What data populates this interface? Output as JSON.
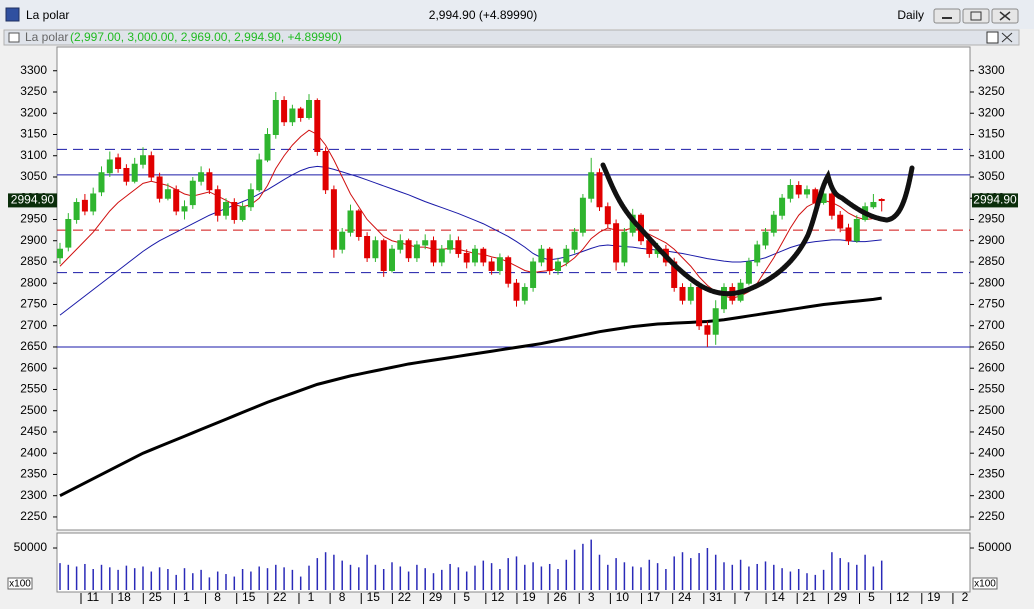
{
  "window": {
    "title": "La polar",
    "quote": "2,994.90 (+4.89990)",
    "period": "Daily"
  },
  "chart_data": {
    "type": "candlestick",
    "symbol": "La polar",
    "ohlc_text": "(2,997.00, 3,000.00, 2,969.00, 2,994.90, +4.89990)",
    "last_label": "2994.90",
    "ylim": [
      2224,
      3330
    ],
    "yticks": [
      2250,
      2300,
      2350,
      2400,
      2450,
      2500,
      2550,
      2600,
      2650,
      2700,
      2750,
      2800,
      2850,
      2900,
      2950,
      3000,
      3050,
      3100,
      3150,
      3200,
      3250,
      3300
    ],
    "up_color": "#2fb52f",
    "down_color": "#e00000",
    "x_labels": [
      "11",
      "18",
      "25",
      "1",
      "8",
      "15",
      "22",
      "1",
      "8",
      "15",
      "22",
      "29",
      "5",
      "12",
      "19",
      "26",
      "3",
      "10",
      "17",
      "24",
      "31",
      "7",
      "14",
      "21",
      "29",
      "5",
      "12",
      "19",
      "2"
    ],
    "candles": [
      [
        2860,
        2895,
        2845,
        2880
      ],
      [
        2885,
        2965,
        2875,
        2950
      ],
      [
        2950,
        3000,
        2940,
        2990
      ],
      [
        2995,
        3010,
        2960,
        2970
      ],
      [
        2970,
        3025,
        2960,
        3010
      ],
      [
        3015,
        3075,
        3005,
        3060
      ],
      [
        3060,
        3110,
        3050,
        3090
      ],
      [
        3095,
        3105,
        3060,
        3070
      ],
      [
        3070,
        3080,
        3030,
        3040
      ],
      [
        3040,
        3095,
        3035,
        3080
      ],
      [
        3080,
        3120,
        3070,
        3100
      ],
      [
        3100,
        3110,
        3040,
        3050
      ],
      [
        3050,
        3060,
        2990,
        3000
      ],
      [
        3000,
        3035,
        2995,
        3020
      ],
      [
        3020,
        3030,
        2960,
        2970
      ],
      [
        2970,
        2995,
        2950,
        2980
      ],
      [
        2985,
        3050,
        2975,
        3040
      ],
      [
        3040,
        3075,
        3030,
        3060
      ],
      [
        3060,
        3070,
        3010,
        3020
      ],
      [
        3020,
        3030,
        2945,
        2960
      ],
      [
        2960,
        3000,
        2950,
        2990
      ],
      [
        2990,
        3000,
        2940,
        2950
      ],
      [
        2950,
        2990,
        2945,
        2980
      ],
      [
        2980,
        3035,
        2970,
        3020
      ],
      [
        3020,
        3105,
        3015,
        3090
      ],
      [
        3090,
        3165,
        3085,
        3150
      ],
      [
        3150,
        3250,
        3140,
        3230
      ],
      [
        3230,
        3240,
        3170,
        3180
      ],
      [
        3180,
        3220,
        3170,
        3210
      ],
      [
        3210,
        3215,
        3180,
        3190
      ],
      [
        3190,
        3245,
        3185,
        3230
      ],
      [
        3230,
        3235,
        3100,
        3110
      ],
      [
        3110,
        3120,
        3010,
        3020
      ],
      [
        3020,
        3030,
        2860,
        2880
      ],
      [
        2880,
        2930,
        2870,
        2920
      ],
      [
        2920,
        2985,
        2910,
        2970
      ],
      [
        2970,
        2975,
        2900,
        2910
      ],
      [
        2910,
        2920,
        2850,
        2860
      ],
      [
        2860,
        2910,
        2850,
        2900
      ],
      [
        2900,
        2905,
        2815,
        2830
      ],
      [
        2830,
        2890,
        2825,
        2880
      ],
      [
        2880,
        2915,
        2870,
        2900
      ],
      [
        2900,
        2905,
        2850,
        2860
      ],
      [
        2860,
        2900,
        2850,
        2890
      ],
      [
        2890,
        2915,
        2880,
        2900
      ],
      [
        2900,
        2910,
        2840,
        2850
      ],
      [
        2850,
        2890,
        2840,
        2880
      ],
      [
        2880,
        2915,
        2870,
        2900
      ],
      [
        2900,
        2910,
        2860,
        2870
      ],
      [
        2870,
        2880,
        2835,
        2850
      ],
      [
        2850,
        2890,
        2840,
        2880
      ],
      [
        2880,
        2885,
        2840,
        2850
      ],
      [
        2850,
        2860,
        2820,
        2830
      ],
      [
        2830,
        2870,
        2820,
        2860
      ],
      [
        2860,
        2865,
        2790,
        2800
      ],
      [
        2800,
        2810,
        2745,
        2760
      ],
      [
        2760,
        2800,
        2750,
        2790
      ],
      [
        2790,
        2860,
        2780,
        2850
      ],
      [
        2850,
        2890,
        2840,
        2880
      ],
      [
        2880,
        2885,
        2820,
        2830
      ],
      [
        2830,
        2860,
        2820,
        2850
      ],
      [
        2850,
        2890,
        2840,
        2880
      ],
      [
        2880,
        2930,
        2870,
        2920
      ],
      [
        2920,
        3010,
        2910,
        3000
      ],
      [
        3000,
        3095,
        2990,
        3060
      ],
      [
        3060,
        3070,
        2970,
        2980
      ],
      [
        2980,
        2990,
        2930,
        2940
      ],
      [
        2940,
        2950,
        2830,
        2850
      ],
      [
        2850,
        2930,
        2840,
        2920
      ],
      [
        2920,
        2975,
        2910,
        2960
      ],
      [
        2960,
        2965,
        2890,
        2900
      ],
      [
        2900,
        2910,
        2860,
        2870
      ],
      [
        2870,
        2895,
        2860,
        2880
      ],
      [
        2880,
        2890,
        2840,
        2850
      ],
      [
        2850,
        2860,
        2780,
        2790
      ],
      [
        2790,
        2800,
        2750,
        2760
      ],
      [
        2760,
        2800,
        2750,
        2790
      ],
      [
        2790,
        2795,
        2690,
        2700
      ],
      [
        2700,
        2710,
        2650,
        2680
      ],
      [
        2680,
        2760,
        2655,
        2740
      ],
      [
        2740,
        2800,
        2730,
        2790
      ],
      [
        2790,
        2800,
        2750,
        2760
      ],
      [
        2760,
        2810,
        2755,
        2800
      ],
      [
        2800,
        2860,
        2795,
        2850
      ],
      [
        2850,
        2900,
        2840,
        2890
      ],
      [
        2890,
        2930,
        2880,
        2920
      ],
      [
        2920,
        2970,
        2910,
        2960
      ],
      [
        2960,
        3010,
        2950,
        3000
      ],
      [
        3000,
        3045,
        2990,
        3030
      ],
      [
        3030,
        3040,
        3000,
        3010
      ],
      [
        3010,
        3030,
        3000,
        3020
      ],
      [
        3020,
        3025,
        2980,
        2990
      ],
      [
        2990,
        3020,
        2985,
        3010
      ],
      [
        3010,
        3015,
        2950,
        2960
      ],
      [
        2960,
        2970,
        2920,
        2930
      ],
      [
        2930,
        2940,
        2890,
        2900
      ],
      [
        2900,
        2960,
        2895,
        2950
      ],
      [
        2950,
        2990,
        2945,
        2980
      ],
      [
        2980,
        3010,
        2975,
        2990
      ],
      [
        2997,
        3000,
        2969,
        2994.9
      ]
    ],
    "averages": [
      {
        "color": "#000000",
        "width": 3,
        "values": [
          2300,
          2310,
          2320,
          2330,
          2340,
          2350,
          2360,
          2370,
          2380,
          2390,
          2400,
          2408,
          2416,
          2424,
          2432,
          2440,
          2448,
          2456,
          2464,
          2472,
          2480,
          2488,
          2496,
          2504,
          2512,
          2520,
          2527,
          2534,
          2541,
          2548,
          2555,
          2562,
          2567,
          2572,
          2577,
          2582,
          2586,
          2590,
          2594,
          2598,
          2602,
          2606,
          2610,
          2613,
          2616,
          2619,
          2622,
          2625,
          2628,
          2631,
          2634,
          2637,
          2640,
          2643,
          2646,
          2649,
          2652,
          2655,
          2658,
          2662,
          2666,
          2670,
          2674,
          2678,
          2682,
          2686,
          2689,
          2692,
          2695,
          2698,
          2700,
          2702,
          2704,
          2705,
          2706,
          2707,
          2708,
          2709,
          2710,
          2712,
          2714,
          2717,
          2720,
          2723,
          2726,
          2729,
          2732,
          2735,
          2738,
          2741,
          2744,
          2747,
          2750,
          2752,
          2754,
          2756,
          2758,
          2760,
          2762,
          2765
        ]
      },
      {
        "color": "#1a1aa8",
        "width": 1,
        "values": [
          2725,
          2740,
          2755,
          2770,
          2785,
          2800,
          2815,
          2830,
          2845,
          2860,
          2875,
          2888,
          2900,
          2910,
          2920,
          2930,
          2940,
          2950,
          2960,
          2968,
          2976,
          2984,
          2992,
          3000,
          3010,
          3020,
          3032,
          3044,
          3055,
          3065,
          3072,
          3075,
          3073,
          3068,
          3062,
          3056,
          3050,
          3043,
          3036,
          3029,
          3022,
          3015,
          3008,
          3000,
          2992,
          2985,
          2978,
          2971,
          2964,
          2956,
          2948,
          2940,
          2930,
          2920,
          2910,
          2898,
          2885,
          2870,
          2860,
          2855,
          2858,
          2862,
          2868,
          2875,
          2882,
          2888,
          2890,
          2888,
          2886,
          2885,
          2882,
          2880,
          2878,
          2876,
          2873,
          2870,
          2866,
          2862,
          2858,
          2855,
          2852,
          2850,
          2850,
          2852,
          2855,
          2860,
          2868,
          2876,
          2884,
          2890,
          2895,
          2898,
          2900,
          2902,
          2902,
          2900,
          2898,
          2898,
          2900,
          2902
        ]
      },
      {
        "color": "#d01010",
        "width": 1,
        "values": [
          2840,
          2860,
          2880,
          2900,
          2920,
          2945,
          2970,
          2990,
          3005,
          3020,
          3035,
          3040,
          3035,
          3030,
          3020,
          3010,
          3005,
          3010,
          3015,
          3005,
          2995,
          2985,
          2980,
          2985,
          3000,
          3030,
          3070,
          3100,
          3125,
          3145,
          3160,
          3150,
          3125,
          3090,
          3050,
          3010,
          2980,
          2950,
          2930,
          2910,
          2900,
          2895,
          2890,
          2885,
          2885,
          2880,
          2880,
          2882,
          2880,
          2875,
          2870,
          2868,
          2862,
          2858,
          2850,
          2840,
          2830,
          2825,
          2828,
          2830,
          2835,
          2845,
          2860,
          2880,
          2905,
          2920,
          2930,
          2925,
          2925,
          2930,
          2925,
          2915,
          2905,
          2895,
          2880,
          2860,
          2840,
          2815,
          2795,
          2780,
          2770,
          2765,
          2770,
          2780,
          2800,
          2830,
          2860,
          2895,
          2930,
          2960,
          2980,
          2990,
          2995,
          2990,
          2980,
          2965,
          2955,
          2950,
          2952,
          2955
        ]
      }
    ],
    "levels": [
      {
        "value": 3115,
        "color": "#1a1aa8",
        "dashed": true
      },
      {
        "value": 3055,
        "color": "#1a1aa8",
        "dashed": false
      },
      {
        "value": 2925,
        "color": "#d01010",
        "dashed": true
      },
      {
        "value": 2825,
        "color": "#1a1aa8",
        "dashed": true
      },
      {
        "value": 2650,
        "color": "#1a1aa8",
        "dashed": false
      }
    ],
    "volume": {
      "color": "#2a2ab8",
      "ylim": [
        0,
        65500
      ],
      "yticks": [
        50000
      ],
      "unit_label": "x100",
      "values": [
        32000,
        30000,
        28000,
        31000,
        25000,
        30000,
        27000,
        24000,
        29000,
        26000,
        28000,
        22000,
        27000,
        25000,
        18000,
        26000,
        20000,
        24000,
        15000,
        22000,
        19000,
        16000,
        25000,
        22000,
        28000,
        26000,
        30000,
        27000,
        24000,
        16000,
        29000,
        38000,
        45000,
        42000,
        35000,
        30000,
        27000,
        42000,
        30000,
        25000,
        33000,
        28000,
        22000,
        30000,
        26000,
        20000,
        24000,
        31000,
        27000,
        22000,
        29000,
        35000,
        32000,
        25000,
        38000,
        40000,
        30000,
        33000,
        28000,
        31000,
        25000,
        36000,
        48000,
        55000,
        60000,
        42000,
        30000,
        38000,
        33000,
        28000,
        27000,
        36000,
        32000,
        25000,
        40000,
        45000,
        38000,
        44000,
        50000,
        42000,
        33000,
        30000,
        36000,
        28000,
        31000,
        34000,
        30000,
        26000,
        22000,
        25000,
        20000,
        18000,
        24000,
        45000,
        38000,
        33000,
        30000,
        42000,
        28000,
        35000
      ]
    }
  }
}
